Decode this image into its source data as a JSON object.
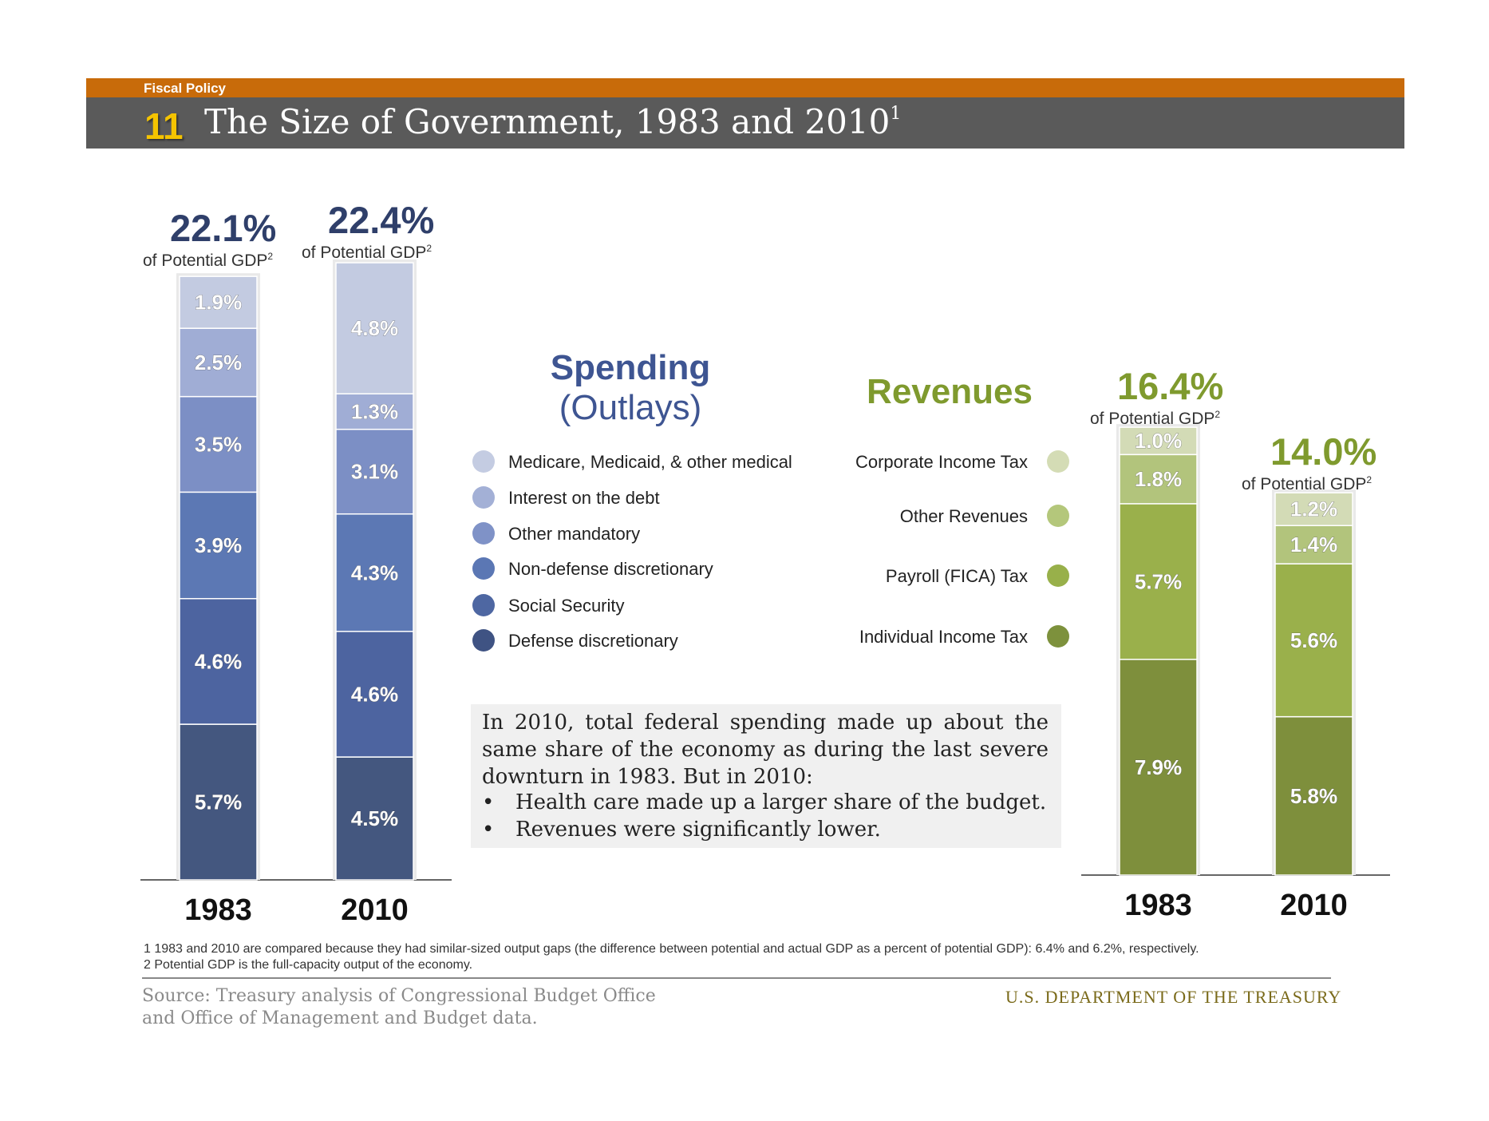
{
  "header": {
    "section": "Fiscal Policy",
    "number": "11",
    "title": "The Size of Government, 1983 and 2010",
    "title_superscript": "1"
  },
  "totals": {
    "spending_1983": "22.1%",
    "spending_2010": "22.4%",
    "revenue_1983": "16.4%",
    "revenue_2010": "14.0%",
    "sub_label": "of Potential GDP",
    "sub_superscript": "2"
  },
  "headings": {
    "spending_line1": "Spending",
    "spending_line2": "(Outlays)",
    "revenues": "Revenues"
  },
  "spending_legend": [
    {
      "label": "Medicare, Medicaid, & other medical",
      "color": "#c4cce2"
    },
    {
      "label": "Interest on the debt",
      "color": "#a3b0d6"
    },
    {
      "label": "Other mandatory",
      "color": "#7f92c7"
    },
    {
      "label": "Non-defense discretionary",
      "color": "#5b77b4"
    },
    {
      "label": "Social Security",
      "color": "#4e67a2"
    },
    {
      "label": "Defense discretionary",
      "color": "#3f5383"
    }
  ],
  "revenue_legend": [
    {
      "label": "Corporate Income Tax",
      "color": "#d4dcb5"
    },
    {
      "label": "Other Revenues",
      "color": "#b4c77b"
    },
    {
      "label": "Payroll (FICA) Tax",
      "color": "#98b04a"
    },
    {
      "label": "Individual Income Tax",
      "color": "#7d913c"
    }
  ],
  "note": {
    "paragraph": "In 2010, total federal spending made up about the same share of the economy as during the last severe downturn in 1983. But in 2010:",
    "bullets": [
      "Health care made up a larger share of the budget.",
      "Revenues were significantly lower."
    ],
    "bullet_symbol": "•"
  },
  "footnotes": [
    "1 1983 and 2010 are compared because they had similar-sized output gaps (the difference between potential and actual GDP as a percent of potential GDP): 6.4% and 6.2%, respectively.",
    "2 Potential GDP is the full-capacity output of the economy."
  ],
  "source": {
    "line1": "Source: Treasury analysis of Congressional Budget Office",
    "line2": "and Office of Management and Budget data.",
    "agency": "U.S. DEPARTMENT OF THE TREASURY"
  },
  "chart_data": [
    {
      "type": "bar",
      "stacked": true,
      "title": "Spending (Outlays)",
      "unit": "% of Potential GDP",
      "categories": [
        "1983",
        "2010"
      ],
      "totals": [
        22.1,
        22.4
      ],
      "series": [
        {
          "name": "Defense discretionary",
          "color": "#44577f",
          "values": [
            5.7,
            4.5
          ],
          "labels": [
            "5.7%",
            "4.5%"
          ]
        },
        {
          "name": "Social Security",
          "color": "#4d64a0",
          "values": [
            4.6,
            4.6
          ],
          "labels": [
            "4.6%",
            "4.6%"
          ]
        },
        {
          "name": "Non-defense discretionary",
          "color": "#5c78b4",
          "values": [
            3.9,
            4.3
          ],
          "labels": [
            "3.9%",
            "4.3%"
          ]
        },
        {
          "name": "Other mandatory",
          "color": "#7c8fc5",
          "values": [
            3.5,
            3.1
          ],
          "labels": [
            "3.5%",
            "3.1%"
          ]
        },
        {
          "name": "Interest on the debt",
          "color": "#a0add5",
          "values": [
            2.5,
            1.3
          ],
          "labels": [
            "2.5%",
            "1.3%"
          ]
        },
        {
          "name": "Medicare, Medicaid, & other medical",
          "color": "#c3cbe1",
          "values": [
            1.9,
            4.8
          ],
          "labels": [
            "1.9%",
            "4.8%"
          ]
        }
      ]
    },
    {
      "type": "bar",
      "stacked": true,
      "title": "Revenues",
      "unit": "% of Potential GDP",
      "categories": [
        "1983",
        "2010"
      ],
      "totals": [
        16.4,
        14.0
      ],
      "series": [
        {
          "name": "Individual Income Tax",
          "color": "#7e8f3c",
          "values": [
            7.9,
            5.8
          ],
          "labels": [
            "7.9%",
            "5.8%"
          ]
        },
        {
          "name": "Payroll (FICA) Tax",
          "color": "#9ab04b",
          "values": [
            5.7,
            5.6
          ],
          "labels": [
            "5.7%",
            "5.6%"
          ]
        },
        {
          "name": "Other Revenues",
          "color": "#b2c47c",
          "values": [
            1.8,
            1.4
          ],
          "labels": [
            "1.8%",
            "1.4%"
          ]
        },
        {
          "name": "Corporate Income Tax",
          "color": "#d3dbb6",
          "values": [
            1.0,
            1.2
          ],
          "labels": [
            "1.0%",
            "1.2%"
          ]
        }
      ]
    }
  ]
}
